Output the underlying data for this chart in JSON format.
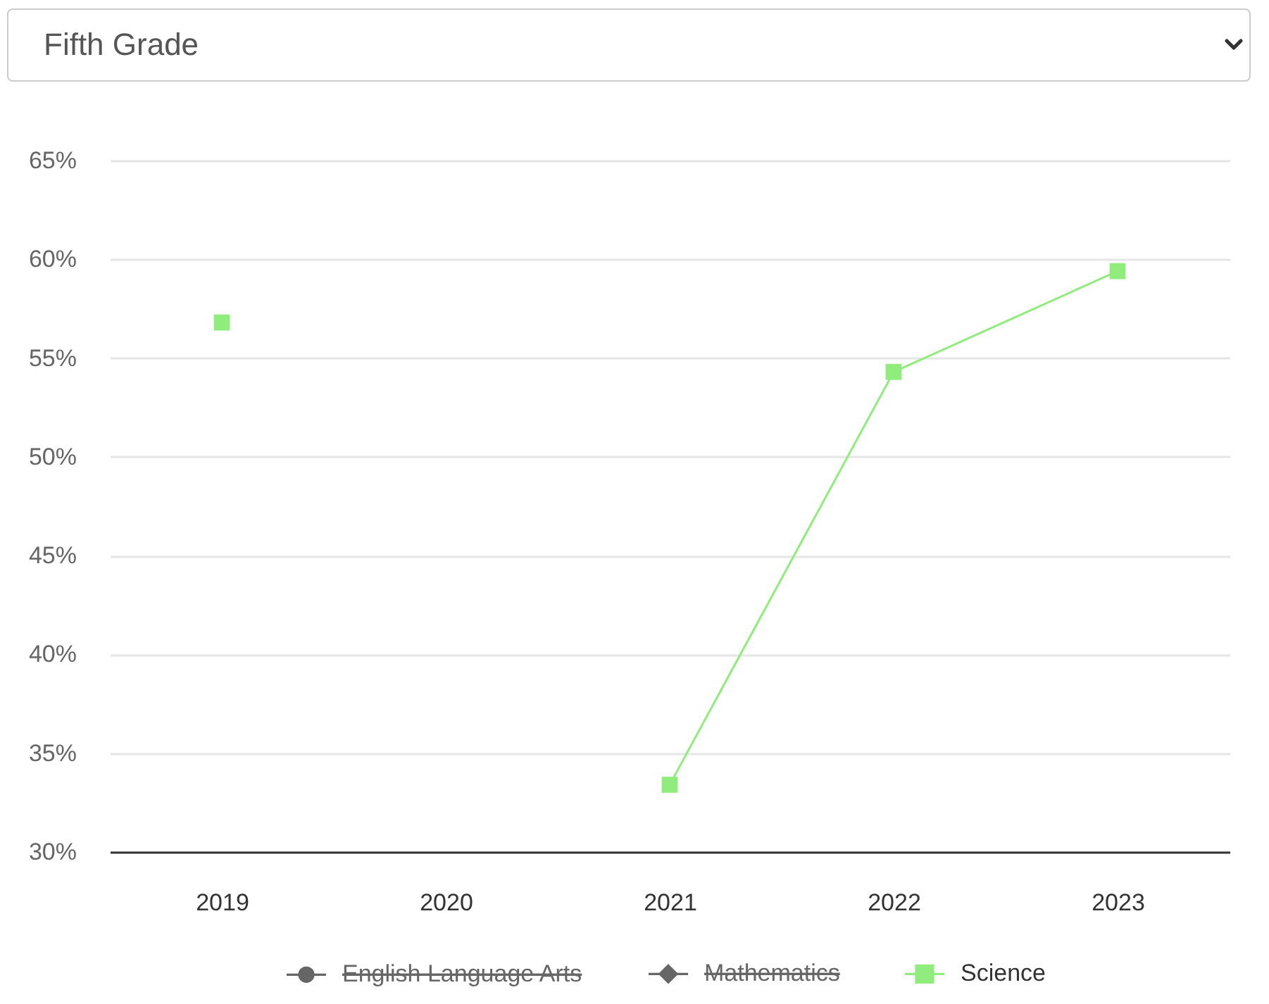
{
  "chart_data": {
    "type": "line",
    "title": "Fifth Grade",
    "categories": [
      "2019",
      "2020",
      "2021",
      "2022",
      "2023"
    ],
    "series": [
      {
        "name": "English Language Arts",
        "color": "#666666",
        "marker": "circle",
        "values": [
          null,
          null,
          null,
          null,
          null
        ]
      },
      {
        "name": "Mathematics",
        "color": "#666666",
        "marker": "diamond",
        "values": [
          null,
          null,
          null,
          null,
          null
        ]
      },
      {
        "name": "Science",
        "color": "#90ed7d",
        "marker": "square",
        "values": [
          56.8,
          null,
          33.4,
          54.3,
          59.4
        ]
      }
    ],
    "ylim": [
      30,
      65
    ],
    "yticks": [
      {
        "value": 30,
        "label": "30%"
      },
      {
        "value": 35,
        "label": "35%"
      },
      {
        "value": 40,
        "label": "40%"
      },
      {
        "value": 45,
        "label": "45%"
      },
      {
        "value": 50,
        "label": "50%"
      },
      {
        "value": 55,
        "label": "55%"
      },
      {
        "value": 60,
        "label": "60%"
      },
      {
        "value": 65,
        "label": "65%"
      }
    ],
    "grid": "y",
    "legend": "bottom"
  }
}
